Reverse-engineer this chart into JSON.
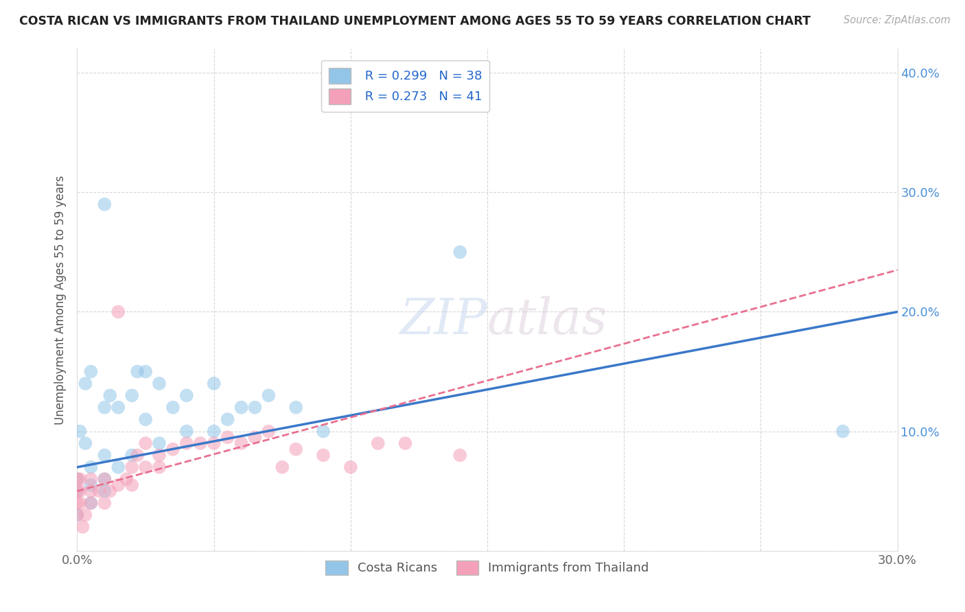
{
  "title": "COSTA RICAN VS IMMIGRANTS FROM THAILAND UNEMPLOYMENT AMONG AGES 55 TO 59 YEARS CORRELATION CHART",
  "source": "Source: ZipAtlas.com",
  "ylabel": "Unemployment Among Ages 55 to 59 years",
  "xmin": 0.0,
  "xmax": 0.3,
  "ymin": 0.0,
  "ymax": 0.42,
  "x_ticks": [
    0.0,
    0.05,
    0.1,
    0.15,
    0.2,
    0.25,
    0.3
  ],
  "y_ticks": [
    0.0,
    0.1,
    0.2,
    0.3,
    0.4
  ],
  "watermark_zip": "ZIP",
  "watermark_atlas": "atlas",
  "legend_labels": [
    "Costa Ricans",
    "Immigrants from Thailand"
  ],
  "R_blue": 0.299,
  "N_blue": 38,
  "R_pink": 0.273,
  "N_pink": 41,
  "blue_color": "#92c5e8",
  "pink_color": "#f4a0b8",
  "blue_line_color": "#3a78c9",
  "pink_line_color": "#e87090",
  "costa_rican_x": [
    0.0,
    0.0,
    0.0,
    0.005,
    0.005,
    0.005,
    0.01,
    0.01,
    0.01,
    0.01,
    0.012,
    0.015,
    0.015,
    0.02,
    0.02,
    0.022,
    0.025,
    0.03,
    0.03,
    0.035,
    0.04,
    0.04,
    0.05,
    0.05,
    0.055,
    0.06,
    0.065,
    0.07,
    0.08,
    0.025,
    0.01,
    0.005,
    0.003,
    0.001,
    0.003,
    0.28,
    0.14,
    0.09
  ],
  "costa_rican_y": [
    0.05,
    0.06,
    0.03,
    0.04,
    0.055,
    0.07,
    0.05,
    0.06,
    0.08,
    0.12,
    0.13,
    0.07,
    0.12,
    0.08,
    0.13,
    0.15,
    0.11,
    0.09,
    0.14,
    0.12,
    0.1,
    0.13,
    0.1,
    0.14,
    0.11,
    0.12,
    0.12,
    0.13,
    0.12,
    0.15,
    0.29,
    0.15,
    0.14,
    0.1,
    0.09,
    0.1,
    0.25,
    0.1
  ],
  "thailand_x": [
    0.0,
    0.0,
    0.0,
    0.0,
    0.005,
    0.005,
    0.005,
    0.008,
    0.01,
    0.01,
    0.012,
    0.015,
    0.015,
    0.018,
    0.02,
    0.02,
    0.022,
    0.025,
    0.025,
    0.03,
    0.03,
    0.035,
    0.04,
    0.045,
    0.05,
    0.055,
    0.06,
    0.065,
    0.07,
    0.075,
    0.08,
    0.09,
    0.1,
    0.11,
    0.12,
    0.14,
    0.001,
    0.003,
    0.001,
    0.002,
    0.001
  ],
  "thailand_y": [
    0.04,
    0.05,
    0.03,
    0.06,
    0.04,
    0.05,
    0.06,
    0.05,
    0.04,
    0.06,
    0.05,
    0.055,
    0.2,
    0.06,
    0.055,
    0.07,
    0.08,
    0.07,
    0.09,
    0.07,
    0.08,
    0.085,
    0.09,
    0.09,
    0.09,
    0.095,
    0.09,
    0.095,
    0.1,
    0.07,
    0.085,
    0.08,
    0.07,
    0.09,
    0.09,
    0.08,
    0.04,
    0.03,
    0.05,
    0.02,
    0.06
  ]
}
